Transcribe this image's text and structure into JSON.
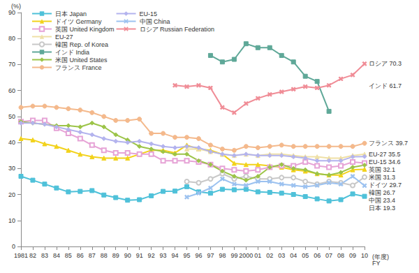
{
  "chart_data": {
    "type": "line",
    "ylabel": "(%)",
    "xlabel": "(年度)\nFY",
    "categories": [
      "1981",
      "82",
      "83",
      "84",
      "85",
      "86",
      "87",
      "88",
      "89",
      "90",
      "91",
      "92",
      "93",
      "94",
      "95",
      "96",
      "97",
      "98",
      "99",
      "2000",
      "01",
      "02",
      "03",
      "04",
      "05",
      "06",
      "07",
      "08",
      "09",
      "10"
    ],
    "ylim": [
      0,
      90
    ],
    "yticks": [
      0,
      10,
      20,
      30,
      40,
      50,
      60,
      70,
      80,
      90
    ],
    "grid": false,
    "legend": "upper left",
    "series": [
      {
        "name": "日本 Japan",
        "color": "#4fc1d9",
        "marker": "square",
        "values": [
          27,
          25.5,
          24,
          22.5,
          21,
          21.2,
          21.5,
          19.8,
          18.8,
          17.8,
          18,
          19.5,
          21.2,
          21.3,
          23,
          21,
          20.5,
          22,
          21.8,
          22,
          21,
          20.8,
          20.5,
          20,
          19.2,
          18.3,
          17.5,
          18,
          20.2,
          19.3
        ]
      },
      {
        "name": "ドイツ Germany",
        "color": "#f2d21b",
        "marker": "triangle",
        "values": [
          41.5,
          41,
          39.5,
          38.5,
          37,
          35.5,
          34.5,
          34,
          34,
          34,
          35.5,
          37,
          37,
          36,
          39,
          37.5,
          37,
          35.5,
          32,
          31.5,
          31.5,
          31,
          30.5,
          29.5,
          29,
          28,
          27.5,
          27.5,
          29.5,
          29.7
        ]
      },
      {
        "name": "英国 United Kingdom",
        "color": "#e6a3d6",
        "marker": "open_square",
        "values": [
          48,
          48.5,
          48.5,
          45.5,
          43.5,
          41.5,
          39,
          37,
          36,
          36,
          35.5,
          35.5,
          33,
          33,
          33,
          32.5,
          31.5,
          30,
          29.5,
          29,
          29.5,
          30.5,
          31,
          31,
          32.5,
          31,
          30.5,
          31,
          32.5,
          32.1
        ]
      },
      {
        "name": "EU-27",
        "color": "#efe0a6",
        "marker": "triangle",
        "values": [
          null,
          null,
          null,
          null,
          null,
          null,
          null,
          null,
          null,
          null,
          null,
          null,
          null,
          null,
          37.5,
          37.5,
          36.5,
          35.5,
          35,
          35.5,
          35,
          35.5,
          35.5,
          35,
          34.5,
          34.5,
          34,
          34,
          35,
          35.5
        ]
      },
      {
        "name": "韓国 Rep. of Korea",
        "color": "#c8c8c8",
        "marker": "open_circle",
        "values": [
          null,
          null,
          null,
          null,
          null,
          null,
          null,
          null,
          null,
          null,
          null,
          null,
          null,
          null,
          25,
          24.5,
          26,
          28,
          26,
          27,
          26,
          26,
          26.5,
          26.5,
          25,
          24,
          25,
          24.5,
          23.5,
          26.7
        ]
      },
      {
        "name": "インド India",
        "color": "#5fa898",
        "marker": "square",
        "values": [
          null,
          null,
          null,
          null,
          null,
          null,
          null,
          null,
          null,
          null,
          null,
          null,
          null,
          null,
          null,
          null,
          73.5,
          71,
          72,
          78,
          76.5,
          76.5,
          73.5,
          71,
          65.5,
          63.5,
          52,
          null,
          null,
          null
        ]
      },
      {
        "name": "米国 United States",
        "color": "#9cc448",
        "marker": "diamond",
        "values": [
          48,
          47.5,
          47,
          46.5,
          46.5,
          46,
          47.5,
          46,
          43,
          41,
          38.5,
          37.5,
          36.5,
          35.5,
          35.5,
          33,
          31.5,
          29,
          27,
          25.5,
          27,
          30.5,
          31.5,
          30,
          29.5,
          28,
          27.5,
          28.5,
          30.5,
          31.3
        ]
      },
      {
        "name": "フランス France",
        "color": "#f4b98c",
        "marker": "circle",
        "values": [
          53.5,
          54,
          54,
          53.5,
          53,
          52.5,
          51.5,
          50,
          48.5,
          48.5,
          49,
          43.5,
          43.5,
          42,
          42,
          41.5,
          39,
          37.5,
          37,
          38.5,
          38,
          38.5,
          39,
          38.5,
          38.5,
          38.5,
          38.5,
          38.5,
          38.5,
          39.7
        ]
      },
      {
        "name": "EU-15",
        "color": "#b3b3ee",
        "marker": "diamond",
        "values": [
          47.5,
          47.5,
          47,
          46,
          45,
          44,
          43,
          41.5,
          40.5,
          40,
          40.5,
          39.5,
          38.5,
          38,
          38.5,
          38,
          36.5,
          35.5,
          35,
          35.5,
          35,
          35,
          35,
          34.5,
          34,
          33,
          33,
          33,
          34.5,
          34.6
        ]
      },
      {
        "name": "中国 China",
        "color": "#9cc2f0",
        "marker": "x",
        "values": [
          null,
          null,
          null,
          null,
          null,
          null,
          null,
          null,
          null,
          null,
          null,
          null,
          null,
          null,
          19,
          20.5,
          22.5,
          26,
          24,
          23.5,
          25,
          25,
          24,
          23.5,
          23,
          23.5,
          24.5,
          24,
          27,
          23.4
        ]
      },
      {
        "name": "ロシア Russian Federation",
        "color": "#f08c96",
        "marker": "x",
        "values": [
          null,
          null,
          null,
          null,
          null,
          null,
          null,
          null,
          null,
          null,
          null,
          null,
          null,
          62,
          61.5,
          62,
          61,
          53.5,
          51.5,
          55,
          57,
          58.5,
          59.5,
          60.5,
          61.5,
          61,
          62,
          64.5,
          66,
          70.3
        ]
      }
    ],
    "annotations": [
      {
        "text": "ロシア 70.3",
        "value": 70.3
      },
      {
        "text": "インド 61.7",
        "value": 61.7
      },
      {
        "text": "フランス 39.7",
        "value": 39.7
      },
      {
        "text": "EU-27 35.5",
        "value": 35.5
      },
      {
        "text": "EU-15 34.6",
        "value": 34.6
      },
      {
        "text": "英国 32.1",
        "value": 32.1
      },
      {
        "text": "米国 31.3",
        "value": 31.3
      },
      {
        "text": "ドイツ 29.7",
        "value": 29.7
      },
      {
        "text": "韓国 26.7",
        "value": 26.7
      },
      {
        "text": "中国 23.4",
        "value": 23.4
      },
      {
        "text": "日本 19.3",
        "value": 19.3
      }
    ]
  }
}
